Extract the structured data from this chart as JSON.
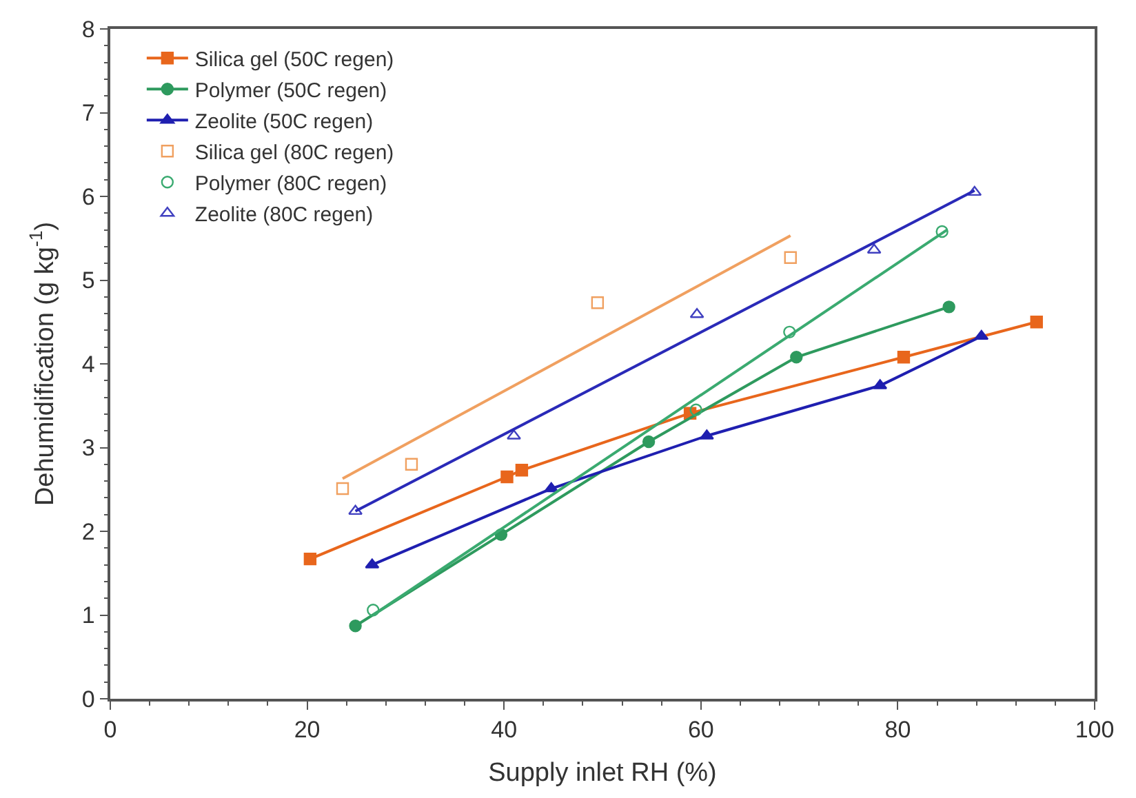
{
  "chart_data": {
    "type": "line",
    "xlabel": "Supply inlet RH (%)",
    "ylabel": "Dehumidification (g kg$^{-1}$)",
    "xlim": [
      0,
      100
    ],
    "xticks": [
      0,
      20,
      40,
      60,
      80,
      100
    ],
    "ylim": [
      0,
      8
    ],
    "yticks": [
      0,
      1,
      2,
      3,
      4,
      5,
      6,
      7,
      8
    ],
    "legend": "top left",
    "series": [
      {
        "name": "Silica gel (50C regen)",
        "marker": "square",
        "color": "#e8661c",
        "x": [
          20.3,
          40.3,
          41.8,
          58.9,
          80.6,
          94.1
        ],
        "values": [
          1.67,
          2.65,
          2.73,
          3.41,
          4.08,
          4.5
        ]
      },
      {
        "name": "Polymer (50C regen)",
        "marker": "circle",
        "color": "#2e9a5e",
        "x": [
          24.9,
          39.7,
          54.7,
          69.7,
          85.2
        ],
        "values": [
          0.87,
          1.96,
          3.07,
          4.08,
          4.68
        ]
      },
      {
        "name": "Zeolite (50C regen)",
        "marker": "triangle",
        "color": "#1f1fb0",
        "x": [
          26.6,
          44.8,
          60.6,
          78.2,
          88.5
        ],
        "values": [
          1.6,
          2.51,
          3.14,
          3.74,
          4.33
        ]
      },
      {
        "name": "Silica gel (80C regen)",
        "type": "scatter",
        "marker": "square",
        "color": "#f0a060",
        "x": [
          23.6,
          30.6,
          49.5,
          69.1
        ],
        "values": [
          2.51,
          2.8,
          4.73,
          5.27
        ]
      },
      {
        "name": "Polymer (80C regen)",
        "type": "scatter",
        "marker": "circle",
        "color": "#3aaa70",
        "x": [
          26.7,
          59.5,
          69,
          84.5
        ],
        "values": [
          1.06,
          3.45,
          4.38,
          5.58
        ]
      },
      {
        "name": "Zeolite (80C regen)",
        "type": "scatter",
        "marker": "triangle",
        "color": "#4040c0",
        "x": [
          24.9,
          41,
          59.6,
          77.6,
          87.8
        ],
        "values": [
          2.24,
          3.14,
          4.59,
          5.36,
          6.05
        ]
      },
      {
        "marker": "none",
        "color": "#f0a060",
        "x": [
          23.6,
          69.1
        ],
        "values": [
          2.63,
          5.53
        ]
      },
      {
        "marker": "none",
        "color": "#3aaa70",
        "x": [
          26.7,
          85
        ],
        "values": [
          1.0,
          5.6
        ]
      },
      {
        "marker": "none",
        "color": "#2a2ab8",
        "x": [
          24.9,
          87.8
        ],
        "values": [
          2.24,
          6.07
        ]
      }
    ]
  }
}
